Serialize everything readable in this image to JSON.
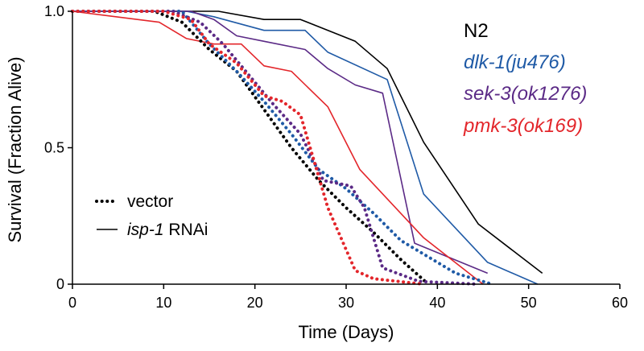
{
  "chart_data": {
    "type": "line",
    "title": "",
    "xlabel": "Time (Days)",
    "ylabel": "Survival (Fraction Alive)",
    "xlim": [
      0,
      60
    ],
    "ylim": [
      0,
      1.0
    ],
    "x_ticks": [
      0,
      10,
      20,
      30,
      40,
      50,
      60
    ],
    "x_tick_labels": [
      "0",
      "10",
      "20",
      "30",
      "40",
      "50",
      "60"
    ],
    "y_ticks": [
      0,
      0.5,
      1.0
    ],
    "y_tick_labels": [
      "0",
      "0.5",
      "1.0"
    ],
    "grid": false,
    "line_style_legend": {
      "placement": "bottom-left",
      "items": [
        {
          "style": "dotted",
          "text": "vector"
        },
        {
          "style": "solid",
          "gene": "isp-1",
          "text": " RNAi"
        }
      ]
    },
    "strain_legend": {
      "placement": "top-right",
      "items": [
        {
          "label": "N2",
          "color": "#000000",
          "italic": false
        },
        {
          "label": "dlk-1(ju476)",
          "color": "#1f5aa6",
          "italic": true
        },
        {
          "label": "sek-3(ok1276)",
          "color": "#5b2a86",
          "italic": true
        },
        {
          "label": "pmk-3(ok169)",
          "color": "#e3262b",
          "italic": true
        }
      ]
    },
    "series": [
      {
        "strain": "N2",
        "treatment": "isp-1 RNAi",
        "color": "#000000",
        "style": "solid",
        "x": [
          0,
          16,
          21,
          25,
          31,
          34.5,
          38.5,
          44.5,
          51.5
        ],
        "y": [
          1.0,
          1.0,
          0.97,
          0.97,
          0.89,
          0.79,
          0.52,
          0.22,
          0.04
        ]
      },
      {
        "strain": "dlk-1(ju476)",
        "treatment": "isp-1 RNAi",
        "color": "#1f5aa6",
        "style": "solid",
        "x": [
          0,
          12.5,
          15.5,
          21,
          25.5,
          28,
          34.5,
          38.5,
          45.5,
          51
        ],
        "y": [
          1.0,
          1.0,
          0.98,
          0.93,
          0.93,
          0.85,
          0.75,
          0.33,
          0.08,
          0.0
        ]
      },
      {
        "strain": "sek-3(ok1276)",
        "treatment": "isp-1 RNAi",
        "color": "#5b2a86",
        "style": "solid",
        "x": [
          0,
          13,
          15.5,
          18,
          21,
          25.5,
          28,
          31,
          34,
          37.5,
          45.5
        ],
        "y": [
          1.0,
          1.0,
          0.97,
          0.91,
          0.89,
          0.86,
          0.79,
          0.73,
          0.7,
          0.15,
          0.04
        ]
      },
      {
        "strain": "pmk-3(ok169)",
        "treatment": "isp-1 RNAi",
        "color": "#e3262b",
        "style": "solid",
        "x": [
          0,
          9.5,
          12.5,
          15.5,
          18.5,
          21,
          24,
          28,
          31.5,
          38.5,
          45
        ],
        "y": [
          1.0,
          0.96,
          0.9,
          0.88,
          0.88,
          0.8,
          0.78,
          0.65,
          0.42,
          0.17,
          0.0
        ]
      },
      {
        "strain": "N2",
        "treatment": "vector",
        "color": "#000000",
        "style": "dotted",
        "x": [
          0,
          9,
          12,
          15,
          18,
          21,
          24,
          27,
          30,
          33,
          36,
          39
        ],
        "y": [
          1.0,
          1.0,
          0.96,
          0.86,
          0.78,
          0.64,
          0.5,
          0.38,
          0.28,
          0.19,
          0.09,
          0.0
        ]
      },
      {
        "strain": "dlk-1(ju476)",
        "treatment": "vector",
        "color": "#1f5aa6",
        "style": "dotted",
        "x": [
          0,
          12,
          15,
          18,
          21,
          24,
          27,
          30,
          33,
          36,
          42,
          46
        ],
        "y": [
          1.0,
          1.0,
          0.88,
          0.78,
          0.67,
          0.55,
          0.42,
          0.35,
          0.26,
          0.16,
          0.04,
          0.0
        ]
      },
      {
        "strain": "sek-3(ok1276)",
        "treatment": "vector",
        "color": "#5b2a86",
        "style": "dotted",
        "x": [
          0,
          11,
          14,
          16.5,
          19,
          22,
          25,
          27.5,
          30.5,
          32,
          34,
          38,
          44.5
        ],
        "y": [
          1.0,
          1.0,
          0.96,
          0.88,
          0.78,
          0.66,
          0.55,
          0.38,
          0.36,
          0.28,
          0.06,
          0.01,
          0.0
        ]
      },
      {
        "strain": "pmk-3(ok169)",
        "treatment": "vector",
        "color": "#e3262b",
        "style": "dotted",
        "x": [
          0,
          10,
          13,
          15,
          18,
          21,
          23,
          25,
          28,
          31,
          33,
          38.5
        ],
        "y": [
          1.0,
          1.0,
          0.97,
          0.88,
          0.81,
          0.69,
          0.67,
          0.62,
          0.28,
          0.05,
          0.02,
          0.0
        ]
      }
    ]
  }
}
